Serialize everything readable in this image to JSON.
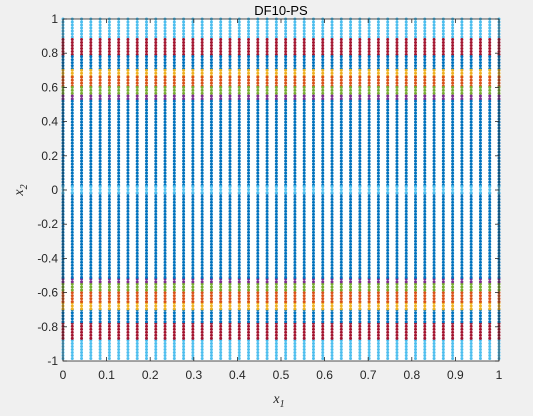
{
  "chart_data": {
    "type": "scatter",
    "title": "DF10-PS",
    "xlabel": {
      "base": "x",
      "sub": "1"
    },
    "ylabel": {
      "base": "x",
      "sub": "2"
    },
    "xlim": [
      0,
      1
    ],
    "ylim": [
      -1,
      1
    ],
    "x_ticks": [
      0,
      0.1,
      0.2,
      0.3,
      0.4,
      0.5,
      0.6,
      0.7,
      0.8,
      0.9,
      1
    ],
    "x_tick_labels": [
      "0",
      "0.1",
      "0.2",
      "0.3",
      "0.4",
      "0.5",
      "0.6",
      "0.7",
      "0.8",
      "0.9",
      "1"
    ],
    "y_ticks": [
      -1,
      -0.8,
      -0.6,
      -0.4,
      -0.2,
      0,
      0.2,
      0.4,
      0.6,
      0.8,
      1
    ],
    "y_tick_labels": [
      "-1",
      "-0.8",
      "-0.6",
      "-0.4",
      "-0.2",
      "0",
      "0.2",
      "0.4",
      "0.6",
      "0.8",
      "1"
    ],
    "grid": false,
    "x_columns": 48,
    "series": [
      {
        "color": "#4DBEEE",
        "y_ranges": [
          [
            0.88,
            1.0
          ],
          [
            -1.0,
            -0.88
          ]
        ]
      },
      {
        "color": "#A2142F",
        "y_ranges": [
          [
            0.78,
            0.88
          ],
          [
            -0.88,
            -0.78
          ]
        ]
      },
      {
        "color": "#0072BD",
        "y_ranges": [
          [
            0.7,
            0.78
          ],
          [
            -0.78,
            -0.7
          ]
        ]
      },
      {
        "color": "#EDB120",
        "y_ranges": [
          [
            0.66,
            0.7
          ],
          [
            -0.7,
            -0.66
          ]
        ]
      },
      {
        "color": "#D95319",
        "y_ranges": [
          [
            0.6,
            0.66
          ],
          [
            -0.66,
            -0.6
          ]
        ]
      },
      {
        "color": "#77AC30",
        "y_ranges": [
          [
            0.55,
            0.6
          ],
          [
            -0.6,
            -0.55
          ]
        ]
      },
      {
        "color": "#7E2F8E",
        "y_ranges": [
          [
            0.52,
            0.55
          ],
          [
            -0.55,
            -0.52
          ]
        ]
      },
      {
        "color": "#0072BD",
        "y_ranges": [
          [
            0.02,
            0.52
          ],
          [
            -0.52,
            -0.02
          ]
        ]
      },
      {
        "color": "#4DBEEE",
        "y_ranges": [
          [
            -0.02,
            0.02
          ]
        ]
      }
    ]
  }
}
